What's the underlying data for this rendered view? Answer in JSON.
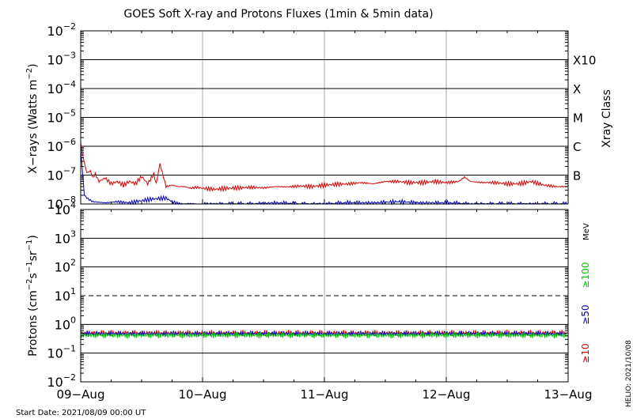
{
  "chart_data": [
    {
      "type": "line",
      "title": "GOES Soft X-ray and Protons Fluxes   (1min & 5min data)",
      "ylabel_main": "X−rays (Watts m",
      "ylabel_sup": "−2",
      "ylabel_close": ")",
      "yscale": "log",
      "ylim": [
        1e-08,
        0.01
      ],
      "ytick_exponents": [
        "−2",
        "−3",
        "−4",
        "−5",
        "−6",
        "−7",
        "−8"
      ],
      "ytick_values": [
        0.01,
        0.001,
        0.0001,
        1e-05,
        1e-06,
        1e-07,
        1e-08
      ],
      "right_axis_title": "Xray Class",
      "class_labels": [
        {
          "label": "X10",
          "value": 0.001
        },
        {
          "label": "X",
          "value": 0.0001
        },
        {
          "label": "M",
          "value": 1e-05
        },
        {
          "label": "C",
          "value": 1e-06
        },
        {
          "label": "B",
          "value": 1e-07
        }
      ],
      "series": [
        {
          "color": "#dd0000",
          "x": [
            0,
            0.02,
            0.05,
            0.08,
            0.1,
            0.12,
            0.15,
            0.2,
            0.25,
            0.3,
            0.35,
            0.4,
            0.45,
            0.5,
            0.55,
            0.6,
            0.62,
            0.65,
            0.7,
            0.75,
            0.8,
            0.85,
            0.9,
            0.95,
            1.0,
            1.1,
            1.2,
            1.3,
            1.4,
            1.5,
            1.6,
            1.7,
            1.8,
            1.9,
            2.0,
            2.1,
            2.2,
            2.3,
            2.4,
            2.5,
            2.6,
            2.7,
            2.8,
            2.9,
            3.0,
            3.1,
            3.15,
            3.2,
            3.3,
            3.4,
            3.5,
            3.6,
            3.7,
            3.8,
            3.9,
            4.0
          ],
          "y": [
            1.3e-06,
            4e-07,
            1.2e-07,
            1.4e-07,
            8e-08,
            1.1e-07,
            6e-08,
            8e-08,
            5e-08,
            6e-08,
            4.5e-08,
            6e-08,
            5e-08,
            9e-08,
            5e-08,
            1.1e-07,
            5e-08,
            2.5e-07,
            4e-08,
            4.5e-08,
            4e-08,
            4e-08,
            3.5e-08,
            3.8e-08,
            3.5e-08,
            3.2e-08,
            3.5e-08,
            3.6e-08,
            3.8e-08,
            3.6e-08,
            4e-08,
            3.9e-08,
            4.2e-08,
            4e-08,
            4.5e-08,
            4.8e-08,
            5e-08,
            5.5e-08,
            5e-08,
            6e-08,
            6e-08,
            5.5e-08,
            5.5e-08,
            6e-08,
            5.5e-08,
            6e-08,
            8.5e-08,
            6e-08,
            5.5e-08,
            5.5e-08,
            5e-08,
            5e-08,
            6e-08,
            4.5e-08,
            4e-08,
            4e-08
          ]
        },
        {
          "color": "#0000cc",
          "x": [
            0,
            0.03,
            0.06,
            0.1,
            0.2,
            0.3,
            0.4,
            0.5,
            0.6,
            0.7,
            0.75,
            0.8,
            0.9,
            1.0,
            1.2,
            1.4,
            1.6,
            1.8,
            2.0,
            2.2,
            2.4,
            2.6,
            2.8,
            3.0,
            3.2,
            3.4,
            3.6,
            3.8,
            4.0
          ],
          "y": [
            8e-07,
            2e-08,
            1.5e-08,
            1.2e-08,
            1.1e-08,
            1.2e-08,
            1.1e-08,
            1.3e-08,
            1.5e-08,
            1.6e-08,
            1.2e-08,
            1e-08,
            1e-08,
            1e-08,
            1e-08,
            1e-08,
            1.1e-08,
            1e-08,
            1e-08,
            1.1e-08,
            1.1e-08,
            1.2e-08,
            1.1e-08,
            1.1e-08,
            1e-08,
            1e-08,
            1e-08,
            1e-08,
            1e-08
          ]
        }
      ]
    },
    {
      "type": "line",
      "ylabel_main": "Protons (cm",
      "ylabel_sup1": "−2",
      "ylabel_mid1": "s",
      "ylabel_sup2": "−1",
      "ylabel_mid2": "sr",
      "ylabel_sup3": "−1",
      "ylabel_close": ")",
      "yscale": "log",
      "ylim": [
        0.01,
        10000
      ],
      "ytick_exponents": [
        "4",
        "3",
        "2",
        "1",
        "0",
        "−1",
        "−2"
      ],
      "ytick_values": [
        10000,
        1000,
        100,
        10,
        1,
        0.1,
        0.01
      ],
      "dashed_threshold": 10,
      "right_axis_unit": "MeV",
      "energy_labels": [
        {
          "label": "≥100",
          "color": "#00cc00"
        },
        {
          "label": "≥50",
          "color": "#0000cc"
        },
        {
          "label": "≥10",
          "color": "#dd0000"
        }
      ],
      "series": [
        {
          "color": "#dd0000",
          "level": 0.5
        },
        {
          "color": "#0000cc",
          "level": 0.47
        },
        {
          "color": "#00cc00",
          "level": 0.42
        }
      ]
    }
  ],
  "x_axis": {
    "range": [
      0,
      4
    ],
    "tick_labels": [
      "09−Aug",
      "10−Aug",
      "11−Aug",
      "12−Aug",
      "13−Aug"
    ],
    "tick_values": [
      0,
      1,
      2,
      3,
      4
    ]
  },
  "start_date": "Start Date: 2021/08/09 00:00 UT",
  "credit": "HELIO: 2021/10/08"
}
